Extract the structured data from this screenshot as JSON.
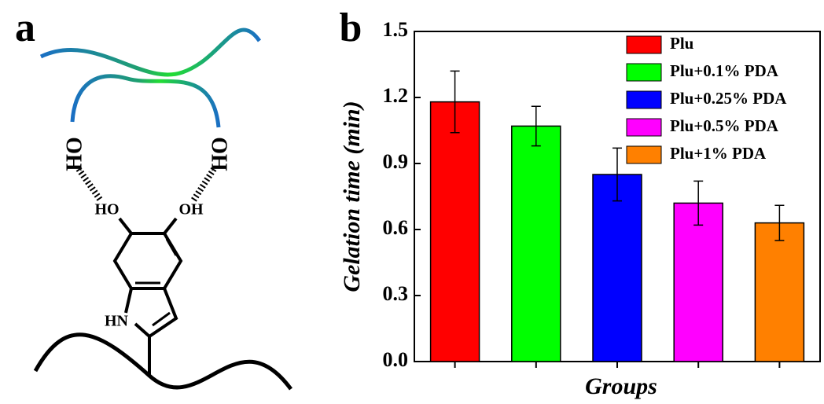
{
  "panels": [
    "a",
    "b"
  ],
  "diagram": {
    "labels": [
      "HO",
      "HO",
      "HO",
      "OH",
      "HN"
    ]
  },
  "chart_data": {
    "type": "bar",
    "ylabel": "Gelation time (min)",
    "xlabel": "Groups",
    "categories": [
      null,
      null,
      null,
      null,
      null
    ],
    "values": [
      1.18,
      1.07,
      0.85,
      0.72,
      0.63
    ],
    "errors": [
      0.14,
      0.09,
      0.12,
      0.1,
      0.08
    ],
    "colors": [
      "#ff0000",
      "#00ff00",
      "#0000ff",
      "#ff00ff",
      "#ff8000"
    ],
    "legend": [
      "Plu",
      "Plu+0.1% PDA",
      "Plu+0.25% PDA",
      "Plu+0.5% PDA",
      "Plu+1% PDA"
    ],
    "ylim": [
      0,
      1.5
    ],
    "yticks": [
      {
        "value": 0,
        "label": "0.0"
      },
      0.3,
      0.6,
      0.9,
      1.2,
      1.5
    ]
  }
}
